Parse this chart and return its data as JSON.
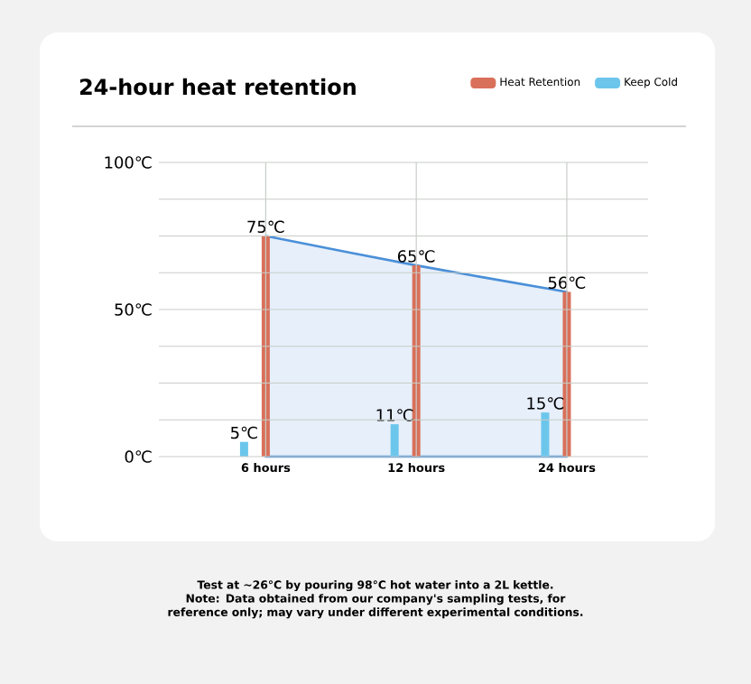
{
  "chart_data": {
    "type": "bar",
    "title": "24-hour heat retention",
    "categories": [
      "6 hours",
      "12 hours",
      "24 hours"
    ],
    "series": [
      {
        "name": "Heat Retention",
        "color": "#d9705a",
        "values": [
          75,
          65,
          56
        ],
        "value_labels": [
          "75℃",
          "65℃",
          "56℃"
        ]
      },
      {
        "name": "Keep Cold",
        "color": "#6cc6ec",
        "values": [
          5,
          11,
          15
        ],
        "value_labels": [
          "5℃",
          "11℃",
          "15℃"
        ]
      },
      {
        "type": "area",
        "color": "#4a8fd8",
        "values": [
          75,
          65,
          56
        ]
      }
    ],
    "ylim": [
      0,
      100
    ],
    "yticks": [
      {
        "value": 0,
        "label": "0℃"
      },
      {
        "value": 12.5,
        "label": null
      },
      {
        "value": 25,
        "label": null
      },
      {
        "value": 37.5,
        "label": null
      },
      {
        "value": 50,
        "label": "50℃"
      },
      {
        "value": 62.5,
        "label": null
      },
      {
        "value": 75,
        "label": null
      },
      {
        "value": 87.5,
        "label": null
      },
      {
        "value": 100,
        "label": "100℃"
      }
    ],
    "grid": true,
    "legend": "top right",
    "annotations": [
      "Test at ~26°C by pouring 98°C hot water into a 2L kettle. Note: Data obtained from our company's sampling tests, for reference only; may vary under different experimental conditions."
    ]
  }
}
